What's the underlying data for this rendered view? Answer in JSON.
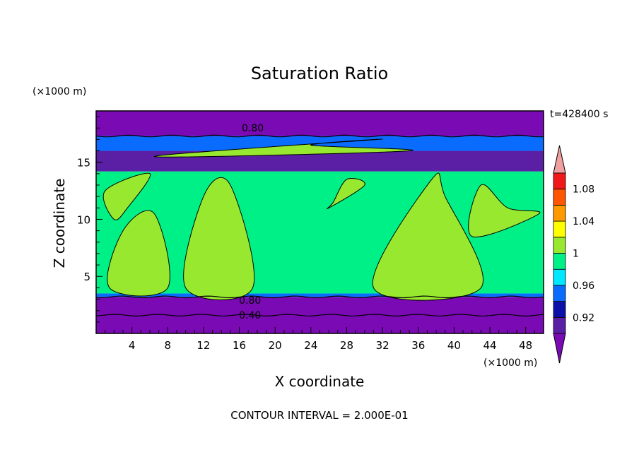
{
  "chart_data": {
    "type": "heatmap",
    "title": "Saturation Ratio",
    "xlabel": "X coordinate",
    "ylabel": "Z coordinate",
    "x_unit": "(×1000 m)",
    "y_unit": "(×1000 m)",
    "time_label": "t=428400 s",
    "footer": "CONTOUR INTERVAL = 2.000E-01",
    "xlim": [
      0,
      50
    ],
    "ylim": [
      0,
      19.5
    ],
    "x_ticks": [
      4,
      8,
      12,
      16,
      20,
      24,
      28,
      32,
      36,
      40,
      44,
      48
    ],
    "y_ticks": [
      5,
      10,
      15
    ],
    "contour_labels": [
      {
        "text": "0.80",
        "x": 17.5,
        "y": 18.0
      },
      {
        "text": "0.80",
        "x": 17.2,
        "y": 2.9
      },
      {
        "text": "0.40",
        "x": 17.2,
        "y": 1.6
      }
    ],
    "colorbar": {
      "levels": [
        0.9,
        0.92,
        0.94,
        0.96,
        0.98,
        1.0,
        1.02,
        1.04,
        1.06,
        1.08,
        1.1
      ],
      "tick_labels": [
        "0.92",
        "0.96",
        "1",
        "1.04",
        "1.08"
      ],
      "tick_values": [
        0.92,
        0.96,
        1.0,
        1.04,
        1.08
      ],
      "colors": [
        "#5a1fa4",
        "#0a10a8",
        "#0a6cff",
        "#00e8ff",
        "#00f088",
        "#99e830",
        "#ffff00",
        "#ff9900",
        "#ff5500",
        "#f01818"
      ],
      "under_color": "#7a0ab4",
      "over_color": "#f0a0a0"
    },
    "layers": [
      {
        "z": [
          0.0,
          3.2
        ],
        "value": 0.85
      },
      {
        "z": [
          3.2,
          3.5
        ],
        "value": 0.95
      },
      {
        "z": [
          3.5,
          14.2
        ],
        "value": 0.99
      },
      {
        "z": [
          14.2,
          16.0
        ],
        "value": 0.91
      },
      {
        "z": [
          16.0,
          17.3
        ],
        "value": 0.95
      },
      {
        "z": [
          17.3,
          19.5
        ],
        "value": 0.85
      }
    ],
    "cloud_regions": [
      {
        "value": 1.01,
        "x": [
          1.0,
          6.0,
          3.5,
          2.0
        ],
        "y": [
          12.5,
          14.0,
          11.0,
          10.0
        ]
      },
      {
        "value": 1.01,
        "x": [
          1.5,
          8.0,
          6.5,
          3.0
        ],
        "y": [
          4.0,
          4.0,
          10.5,
          9.0
        ]
      },
      {
        "value": 1.01,
        "x": [
          10.0,
          17.5,
          15.0,
          12.0
        ],
        "y": [
          4.0,
          4.0,
          13.0,
          12.0
        ]
      },
      {
        "value": 1.01,
        "x": [
          26.0,
          30.0,
          28.0,
          26.5
        ],
        "y": [
          11.0,
          13.0,
          13.5,
          11.5
        ]
      },
      {
        "value": 1.01,
        "x": [
          31.0,
          43.0,
          39.0,
          37.5
        ],
        "y": [
          4.0,
          4.0,
          12.0,
          13.5
        ]
      },
      {
        "value": 1.01,
        "x": [
          42.0,
          49.5,
          46.0,
          43.0
        ],
        "y": [
          8.5,
          10.5,
          11.0,
          13.0
        ]
      },
      {
        "value": 1.01,
        "x": [
          6.5,
          31.5,
          24.0,
          35.0
        ],
        "y": [
          15.5,
          17.0,
          16.5,
          16.0
        ]
      }
    ]
  }
}
